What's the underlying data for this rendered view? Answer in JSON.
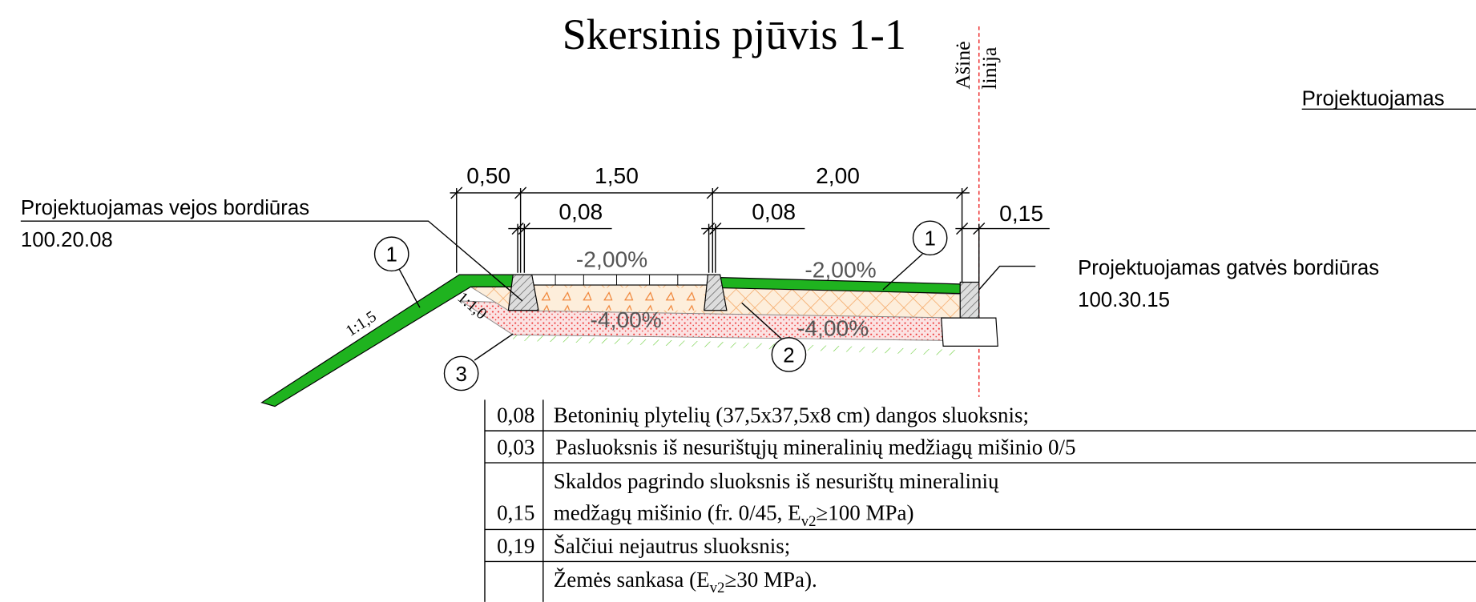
{
  "title": "Skersinis pjūvis 1-1",
  "axis_label": [
    "Ašinė",
    "linija"
  ],
  "top_right_label": "Projektuojamas",
  "dimensions": {
    "top": [
      "0,50",
      "1,50",
      "2,00"
    ],
    "bottom": [
      "0,08",
      "0,08",
      "0,15"
    ]
  },
  "curb_left": {
    "name": "Projektuojamas vejos bordiūras",
    "code": "100.20.08"
  },
  "curb_right": {
    "name": "Projektuojamas gatvės bordiūras",
    "code": "100.30.15"
  },
  "callouts": [
    "1",
    "1",
    "2",
    "3"
  ],
  "slopes": [
    "-2,00%",
    "-2,00%",
    "-4,00%",
    "-4,00%"
  ],
  "embankment_slopes": [
    "1:1,5",
    "1:1,0"
  ],
  "layers": [
    {
      "thickness": "0,08",
      "text": [
        "Betoninių plytelių (37,5x37,5x8 cm) dangos sluoksnis;"
      ]
    },
    {
      "thickness": "0,03",
      "text": [
        "Pasluoksnis iš nesurištųjų mineralinių medžiagų mišinio 0/5"
      ]
    },
    {
      "thickness": "0,15",
      "text": [
        "Skaldos pagrindo sluoksnis iš nesurištų mineralinių",
        "medžagų mišinio (fr. 0/45, E",
        "v2",
        "≥100 MPa)"
      ]
    },
    {
      "thickness": "0,19",
      "text": [
        "Šalčiui nejautrus sluoksnis;"
      ]
    },
    {
      "text": [
        "Žemės sankasa (E",
        "v2",
        "≥30 MPa)."
      ]
    }
  ]
}
